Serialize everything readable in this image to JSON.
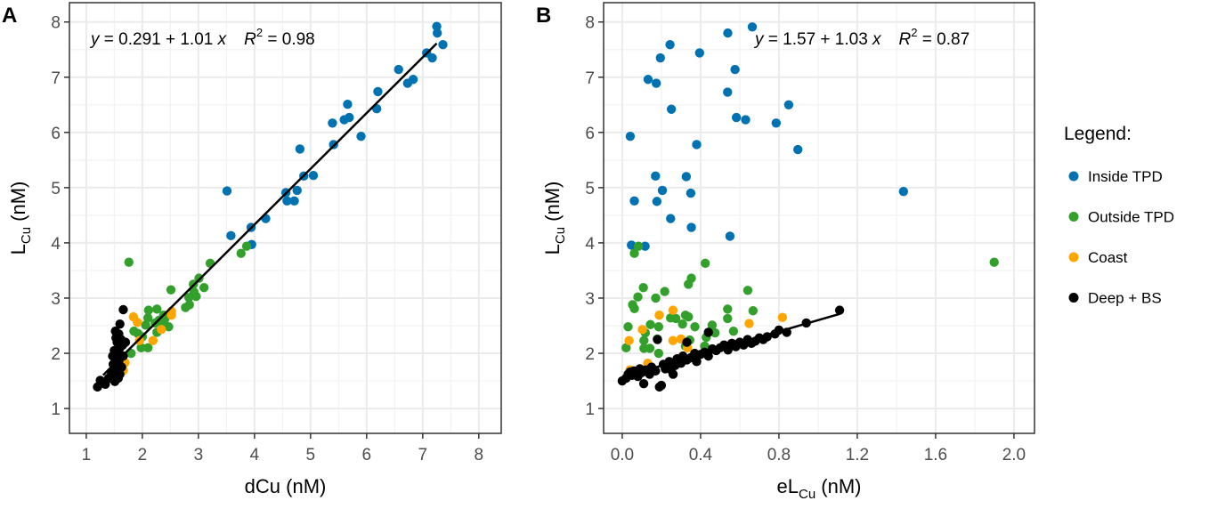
{
  "colors": {
    "Inside TPD": "#0072B2",
    "Outside TPD": "#33A02C",
    "Coast": "#FFA500",
    "Deep + BS": "#000000"
  },
  "legend": {
    "title": "Legend:",
    "items": [
      "Inside TPD",
      "Outside TPD",
      "Coast",
      "Deep + BS"
    ]
  },
  "chart_data": [
    {
      "type": "scatter",
      "panel_label": "A",
      "xlabel": "dCu (nM)",
      "ylabel": {
        "main": "L",
        "sub": "Cu",
        "unit": " (nM)"
      },
      "xlim": [
        0.7,
        8.4
      ],
      "ylim": [
        0.55,
        8.35
      ],
      "xticks": [
        1,
        2,
        3,
        4,
        5,
        6,
        7,
        8
      ],
      "xtick_labels": [
        "1",
        "2",
        "3",
        "4",
        "5",
        "6",
        "7",
        "8"
      ],
      "yticks": [
        1,
        2,
        3,
        4,
        5,
        6,
        7,
        8
      ],
      "ytick_labels": [
        "1",
        "2",
        "3",
        "4",
        "5",
        "6",
        "7",
        "8"
      ],
      "grid": true,
      "fit": {
        "intercept": 0.291,
        "slope": 1.01,
        "r2": 0.98,
        "x_range": [
          1.3,
          7.25
        ],
        "text": {
          "y": "y",
          "eq": " = 0.291 + 1.01 ",
          "x": "x",
          "R": "R",
          "sup": "2",
          "r2": " = 0.98"
        },
        "position": "top-left"
      },
      "series": [
        {
          "name": "Inside TPD",
          "points": [
            [
              7.25,
              7.92
            ],
            [
              7.26,
              7.8
            ],
            [
              7.36,
              7.59
            ],
            [
              7.07,
              7.44
            ],
            [
              7.17,
              7.35
            ],
            [
              6.57,
              7.14
            ],
            [
              6.73,
              6.89
            ],
            [
              6.83,
              6.96
            ],
            [
              6.2,
              6.74
            ],
            [
              6.18,
              6.43
            ],
            [
              5.66,
              6.51
            ],
            [
              5.6,
              6.23
            ],
            [
              5.69,
              6.27
            ],
            [
              5.39,
              6.17
            ],
            [
              5.9,
              5.93
            ],
            [
              5.41,
              5.78
            ],
            [
              4.81,
              5.7
            ],
            [
              4.88,
              5.21
            ],
            [
              5.05,
              5.22
            ],
            [
              3.51,
              4.94
            ],
            [
              4.56,
              4.91
            ],
            [
              4.76,
              4.95
            ],
            [
              4.58,
              4.76
            ],
            [
              4.71,
              4.76
            ],
            [
              4.2,
              4.44
            ],
            [
              3.94,
              4.28
            ],
            [
              3.58,
              4.13
            ],
            [
              3.95,
              3.97
            ]
          ]
        },
        {
          "name": "Outside TPD",
          "points": [
            [
              1.76,
              3.65
            ],
            [
              3.21,
              3.63
            ],
            [
              3.86,
              3.94
            ],
            [
              3.76,
              3.81
            ],
            [
              2.51,
              3.15
            ],
            [
              3.01,
              3.36
            ],
            [
              2.91,
              3.25
            ],
            [
              3.1,
              3.19
            ],
            [
              2.92,
              3.11
            ],
            [
              2.83,
              3.01
            ],
            [
              2.96,
              3.03
            ],
            [
              2.77,
              2.83
            ],
            [
              2.84,
              2.88
            ],
            [
              2.11,
              2.78
            ],
            [
              2.26,
              2.8
            ],
            [
              2.38,
              2.69
            ],
            [
              2.1,
              2.64
            ],
            [
              2.23,
              2.55
            ],
            [
              2.35,
              2.57
            ],
            [
              2.47,
              2.48
            ],
            [
              2.06,
              2.51
            ],
            [
              2.26,
              2.38
            ],
            [
              1.85,
              2.4
            ],
            [
              1.92,
              2.36
            ],
            [
              1.98,
              2.1
            ],
            [
              2.1,
              2.1
            ],
            [
              1.8,
              2.0
            ],
            [
              2.3,
              2.6
            ],
            [
              2.4,
              2.62
            ],
            [
              2.0,
              2.3
            ]
          ]
        },
        {
          "name": "Coast",
          "points": [
            [
              1.84,
              2.66
            ],
            [
              1.91,
              2.56
            ],
            [
              2.52,
              2.76
            ],
            [
              2.52,
              2.69
            ],
            [
              1.95,
              2.23
            ],
            [
              2.19,
              2.23
            ],
            [
              2.34,
              2.43
            ],
            [
              1.69,
              1.83
            ],
            [
              1.66,
              1.69
            ]
          ]
        },
        {
          "name": "Deep + BS",
          "points": [
            [
              1.66,
              2.79
            ],
            [
              1.6,
              2.53
            ],
            [
              1.2,
              1.39
            ],
            [
              1.34,
              1.44
            ],
            [
              1.25,
              1.51
            ],
            [
              1.51,
              1.49
            ],
            [
              1.5,
              1.6
            ],
            [
              1.55,
              1.7
            ],
            [
              1.48,
              1.8
            ],
            [
              1.52,
              1.9
            ],
            [
              1.56,
              2.0
            ],
            [
              1.5,
              2.05
            ],
            [
              1.6,
              2.1
            ],
            [
              1.55,
              2.2
            ],
            [
              1.62,
              2.25
            ],
            [
              1.58,
              2.35
            ],
            [
              1.65,
              2.15
            ],
            [
              1.52,
              2.4
            ],
            [
              1.47,
              1.95
            ],
            [
              1.58,
              1.85
            ],
            [
              1.63,
              1.75
            ],
            [
              1.45,
              1.65
            ],
            [
              1.4,
              1.55
            ],
            [
              1.6,
              1.62
            ],
            [
              1.53,
              2.28
            ],
            [
              1.66,
              1.95
            ],
            [
              1.7,
              2.2
            ],
            [
              1.57,
              1.55
            ]
          ]
        }
      ]
    },
    {
      "type": "scatter",
      "panel_label": "B",
      "xlabel": {
        "pre": "eL",
        "sub": "Cu",
        "unit": " (nM)"
      },
      "ylabel": {
        "main": "L",
        "sub": "Cu",
        "unit": " (nM)"
      },
      "xlim": [
        -0.095,
        2.105
      ],
      "ylim": [
        0.55,
        8.35
      ],
      "xticks": [
        0,
        0.4,
        0.8,
        1.2,
        1.6,
        2.0
      ],
      "xtick_labels": [
        "0.0",
        "0.4",
        "0.8",
        "1.2",
        "1.6",
        "2.0"
      ],
      "yticks": [
        1,
        2,
        3,
        4,
        5,
        6,
        7,
        8
      ],
      "ytick_labels": [
        "1",
        "2",
        "3",
        "4",
        "5",
        "6",
        "7",
        "8"
      ],
      "grid": true,
      "fit": {
        "intercept": 1.57,
        "slope": 1.03,
        "r2": 0.87,
        "x_range": [
          0.0,
          1.11
        ],
        "text": {
          "y": "y",
          "eq": " = 1.57 + 1.03 ",
          "x": "x",
          "R": "R",
          "sup": "2",
          "r2": " = 0.87"
        },
        "position": "top-right"
      },
      "series": [
        {
          "name": "Inside TPD",
          "points": [
            [
              0.664,
              7.91
            ],
            [
              0.539,
              7.8
            ],
            [
              0.244,
              7.59
            ],
            [
              0.195,
              7.35
            ],
            [
              0.395,
              7.44
            ],
            [
              0.132,
              6.96
            ],
            [
              0.174,
              6.89
            ],
            [
              0.576,
              7.14
            ],
            [
              0.538,
              6.73
            ],
            [
              0.85,
              6.5
            ],
            [
              0.251,
              6.42
            ],
            [
              0.583,
              6.27
            ],
            [
              0.63,
              6.23
            ],
            [
              0.786,
              6.17
            ],
            [
              0.041,
              5.93
            ],
            [
              0.38,
              5.78
            ],
            [
              0.897,
              5.69
            ],
            [
              0.17,
              5.21
            ],
            [
              0.327,
              5.2
            ],
            [
              0.205,
              4.95
            ],
            [
              0.35,
              4.9
            ],
            [
              1.436,
              4.93
            ],
            [
              0.062,
              4.76
            ],
            [
              0.177,
              4.75
            ],
            [
              0.247,
              4.44
            ],
            [
              0.353,
              4.28
            ],
            [
              0.55,
              4.12
            ],
            [
              0.047,
              3.96
            ],
            [
              0.117,
              3.94
            ]
          ]
        },
        {
          "name": "Outside TPD",
          "points": [
            [
              1.899,
              3.65
            ],
            [
              0.424,
              3.63
            ],
            [
              0.083,
              3.94
            ],
            [
              0.062,
              3.81
            ],
            [
              0.353,
              3.36
            ],
            [
              0.338,
              3.25
            ],
            [
              0.108,
              3.19
            ],
            [
              0.217,
              3.12
            ],
            [
              0.641,
              3.14
            ],
            [
              0.08,
              3.02
            ],
            [
              0.171,
              3.0
            ],
            [
              0.053,
              2.88
            ],
            [
              0.062,
              2.81
            ],
            [
              0.538,
              2.8
            ],
            [
              0.668,
              2.77
            ],
            [
              0.247,
              2.64
            ],
            [
              0.323,
              2.69
            ],
            [
              0.338,
              2.66
            ],
            [
              0.538,
              2.63
            ],
            [
              0.274,
              2.63
            ],
            [
              0.308,
              2.53
            ],
            [
              0.371,
              2.48
            ],
            [
              0.459,
              2.51
            ],
            [
              0.568,
              2.4
            ],
            [
              0.03,
              2.48
            ],
            [
              0.144,
              2.52
            ],
            [
              0.186,
              2.48
            ],
            [
              0.118,
              2.37
            ],
            [
              0.111,
              2.23
            ],
            [
              0.179,
              2.26
            ],
            [
              0.02,
              2.1
            ],
            [
              0.111,
              2.09
            ],
            [
              0.141,
              2.09
            ],
            [
              0.186,
              2.0
            ],
            [
              0.323,
              2.13
            ],
            [
              0.429,
              2.29
            ],
            [
              0.345,
              2.24
            ],
            [
              0.421,
              2.13
            ],
            [
              0.474,
              2.37
            ]
          ]
        },
        {
          "name": "Coast",
          "points": [
            [
              0.259,
              2.78
            ],
            [
              0.189,
              2.69
            ],
            [
              0.818,
              2.65
            ],
            [
              0.648,
              2.54
            ],
            [
              0.035,
              2.23
            ],
            [
              0.259,
              2.23
            ],
            [
              0.3,
              2.26
            ],
            [
              0.333,
              2.1
            ],
            [
              0.103,
              2.43
            ],
            [
              0.13,
              1.82
            ],
            [
              0.04,
              1.7
            ]
          ]
        },
        {
          "name": "Deep + BS",
          "points": [
            [
              0.0,
              1.5
            ],
            [
              0.02,
              1.55
            ],
            [
              0.03,
              1.62
            ],
            [
              0.05,
              1.6
            ],
            [
              0.06,
              1.68
            ],
            [
              0.08,
              1.58
            ],
            [
              0.1,
              1.65
            ],
            [
              0.11,
              1.45
            ],
            [
              0.12,
              1.7
            ],
            [
              0.14,
              1.62
            ],
            [
              0.15,
              1.75
            ],
            [
              0.17,
              1.68
            ],
            [
              0.19,
              1.39
            ],
            [
              0.2,
              1.42
            ],
            [
              0.21,
              1.8
            ],
            [
              0.22,
              1.72
            ],
            [
              0.24,
              1.85
            ],
            [
              0.25,
              1.7
            ],
            [
              0.27,
              1.78
            ],
            [
              0.28,
              1.9
            ],
            [
              0.3,
              1.82
            ],
            [
              0.31,
              1.95
            ],
            [
              0.33,
              1.88
            ],
            [
              0.35,
              1.92
            ],
            [
              0.37,
              2.0
            ],
            [
              0.38,
              1.85
            ],
            [
              0.4,
              1.98
            ],
            [
              0.42,
              2.02
            ],
            [
              0.44,
              1.95
            ],
            [
              0.46,
              2.08
            ],
            [
              0.48,
              2.05
            ],
            [
              0.5,
              2.1
            ],
            [
              0.52,
              2.15
            ],
            [
              0.54,
              2.06
            ],
            [
              0.56,
              2.18
            ],
            [
              0.58,
              2.12
            ],
            [
              0.6,
              2.2
            ],
            [
              0.62,
              2.15
            ],
            [
              0.64,
              2.25
            ],
            [
              0.66,
              2.18
            ],
            [
              0.68,
              2.22
            ],
            [
              0.7,
              2.28
            ],
            [
              0.72,
              2.25
            ],
            [
              0.74,
              2.3
            ],
            [
              0.78,
              2.35
            ],
            [
              0.8,
              2.42
            ],
            [
              0.84,
              2.38
            ],
            [
              0.94,
              2.55
            ],
            [
              1.11,
              2.78
            ],
            [
              0.18,
              2.25
            ],
            [
              0.33,
              2.2
            ],
            [
              0.44,
              2.38
            ],
            [
              0.09,
              1.72
            ],
            [
              0.04,
              1.66
            ],
            [
              0.26,
              1.62
            ]
          ]
        }
      ]
    }
  ]
}
